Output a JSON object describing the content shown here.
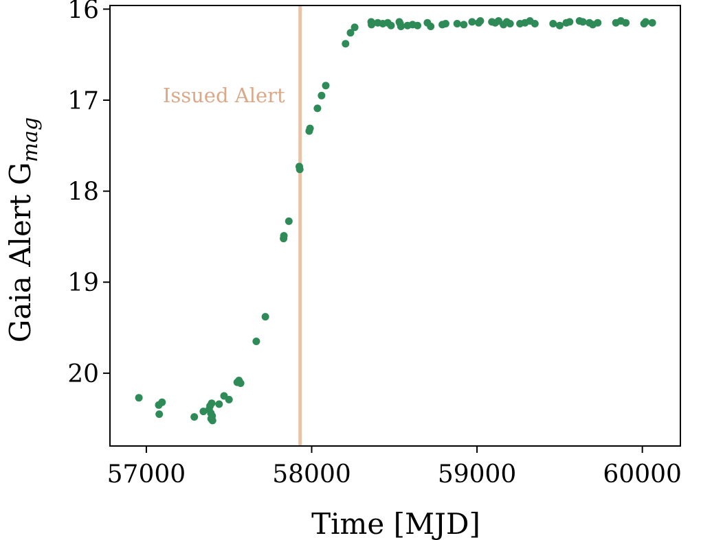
{
  "chart_data": {
    "type": "scatter",
    "title": "",
    "xlabel": "Time [MJD]",
    "ylabel_main": "Gaia Alert G",
    "ylabel_sub": "mag",
    "xlim": [
      56780,
      60230
    ],
    "ylim": [
      20.8,
      15.96
    ],
    "y_inverted": true,
    "grid": false,
    "xticks": [
      57000,
      58000,
      59000,
      60000
    ],
    "yticks": [
      16,
      17,
      18,
      19,
      20
    ],
    "colors": {
      "points": "#2e8b57",
      "alert_line": "#e8c3aa",
      "alert_text": "#d9a98a",
      "axes": "#000000"
    },
    "annotation": {
      "text": "Issued Alert",
      "x": 57930
    },
    "points": [
      [
        56955,
        20.27
      ],
      [
        57075,
        20.35
      ],
      [
        57078,
        20.45
      ],
      [
        57095,
        20.32
      ],
      [
        57290,
        20.48
      ],
      [
        57345,
        20.42
      ],
      [
        57380,
        20.4
      ],
      [
        57385,
        20.36
      ],
      [
        57390,
        20.44
      ],
      [
        57392,
        20.5
      ],
      [
        57395,
        20.33
      ],
      [
        57398,
        20.47
      ],
      [
        57400,
        20.52
      ],
      [
        57440,
        20.34
      ],
      [
        57470,
        20.25
      ],
      [
        57500,
        20.29
      ],
      [
        57550,
        20.1
      ],
      [
        57560,
        20.08
      ],
      [
        57570,
        20.11
      ],
      [
        57665,
        19.65
      ],
      [
        57720,
        19.38
      ],
      [
        57830,
        18.52
      ],
      [
        57832,
        18.49
      ],
      [
        57862,
        18.33
      ],
      [
        57925,
        17.73
      ],
      [
        57928,
        17.76
      ],
      [
        57985,
        17.34
      ],
      [
        57990,
        17.31
      ],
      [
        58035,
        17.09
      ],
      [
        58060,
        16.95
      ],
      [
        58085,
        16.84
      ],
      [
        58205,
        16.38
      ],
      [
        58235,
        16.26
      ],
      [
        58260,
        16.2
      ],
      [
        58360,
        16.14
      ],
      [
        58362,
        16.17
      ],
      [
        58400,
        16.15
      ],
      [
        58430,
        16.16
      ],
      [
        58460,
        16.15
      ],
      [
        58480,
        16.18
      ],
      [
        58530,
        16.14
      ],
      [
        58535,
        16.16
      ],
      [
        58540,
        16.19
      ],
      [
        58580,
        16.18
      ],
      [
        58610,
        16.17
      ],
      [
        58640,
        16.18
      ],
      [
        58700,
        16.15
      ],
      [
        58720,
        16.19
      ],
      [
        58790,
        16.17
      ],
      [
        58810,
        16.16
      ],
      [
        58880,
        16.16
      ],
      [
        58920,
        16.17
      ],
      [
        58970,
        16.14
      ],
      [
        59010,
        16.15
      ],
      [
        59020,
        16.13
      ],
      [
        59090,
        16.14
      ],
      [
        59110,
        16.15
      ],
      [
        59130,
        16.13
      ],
      [
        59160,
        16.17
      ],
      [
        59180,
        16.14
      ],
      [
        59200,
        16.16
      ],
      [
        59260,
        16.16
      ],
      [
        59290,
        16.15
      ],
      [
        59320,
        16.13
      ],
      [
        59350,
        16.16
      ],
      [
        59460,
        16.16
      ],
      [
        59500,
        16.18
      ],
      [
        59540,
        16.15
      ],
      [
        59560,
        16.14
      ],
      [
        59620,
        16.13
      ],
      [
        59640,
        16.14
      ],
      [
        59680,
        16.15
      ],
      [
        59700,
        16.17
      ],
      [
        59730,
        16.15
      ],
      [
        59840,
        16.15
      ],
      [
        59870,
        16.13
      ],
      [
        59900,
        16.15
      ],
      [
        60010,
        16.16
      ],
      [
        60020,
        16.14
      ],
      [
        60060,
        16.15
      ]
    ]
  }
}
